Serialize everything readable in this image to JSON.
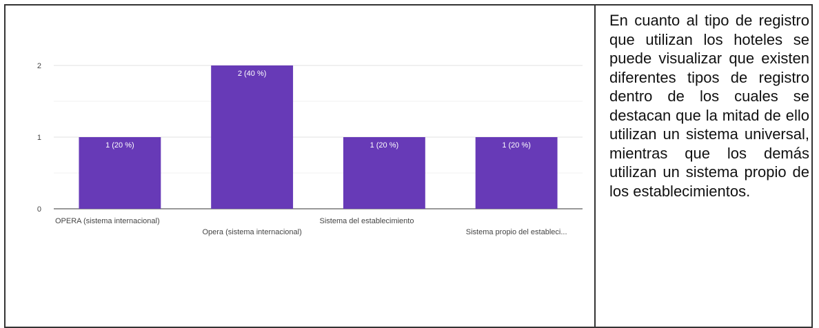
{
  "chart_data": {
    "type": "bar",
    "categories": [
      "OPERA (sistema internacional)",
      "Opera (sistema internacional)",
      "Sistema del establecimiento",
      "Sistema propio del estableci..."
    ],
    "values": [
      1,
      2,
      1,
      1
    ],
    "data_labels": [
      "1 (20 %)",
      "2 (40 %)",
      "1 (20 %)",
      "1 (20 %)"
    ],
    "y_ticks": [
      "0",
      "1",
      "2"
    ],
    "ylim": [
      0,
      2
    ],
    "grid": true,
    "bar_color": "#673ab7",
    "title": "",
    "xlabel": "",
    "ylabel": ""
  },
  "description": "En cuanto al tipo de registro que utilizan los hoteles se puede visualizar que existen diferentes tipos de registro dentro de los cuales se destacan que la mitad de ello utilizan un sistema universal, mientras que los demás utilizan un sistema propio de los establecimientos."
}
